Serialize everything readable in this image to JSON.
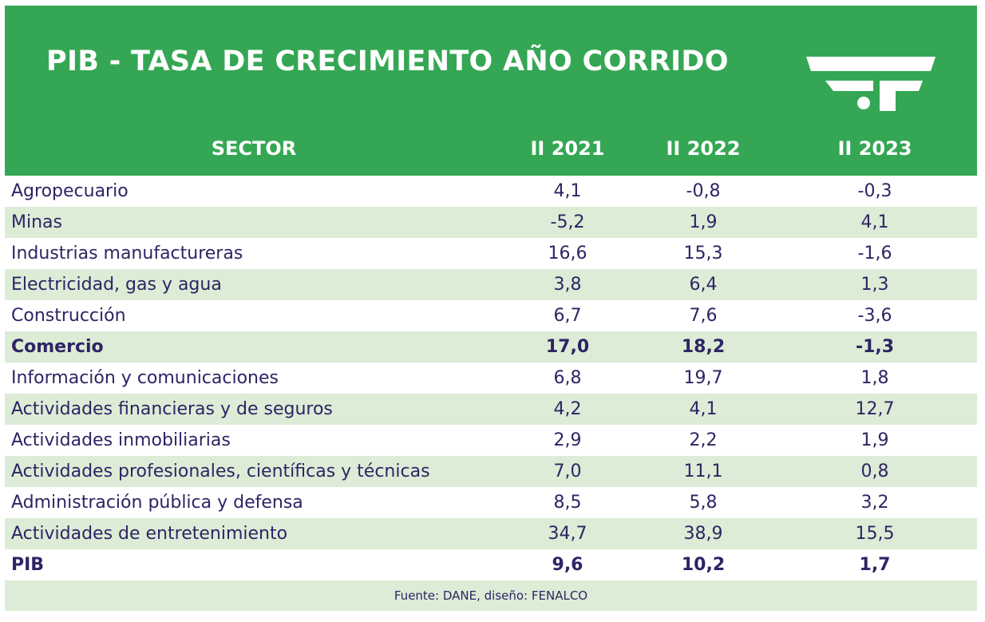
{
  "title": "PIB - TASA DE CRECIMIENTO AÑO CORRIDO",
  "logo": {
    "icon": "fenalco-logo-icon",
    "color": "#ffffff"
  },
  "colors": {
    "header_green": "#35a754",
    "row_alt": "#dcecd6",
    "text": "#2e2464"
  },
  "columns": {
    "sector": "SECTOR",
    "c1": "II 2021",
    "c2": "II 2022",
    "c3": "II 2023"
  },
  "source": "Fuente: DANE, diseño: FENALCO",
  "chart_data": {
    "type": "table",
    "title": "PIB - TASA DE CRECIMIENTO AÑO CORRIDO",
    "columns": [
      "SECTOR",
      "II 2021",
      "II 2022",
      "II 2023"
    ],
    "rows": [
      {
        "sector": "Agropecuario",
        "values": [
          "4,1",
          "-0,8",
          "-0,3"
        ],
        "bold": false
      },
      {
        "sector": "Minas",
        "values": [
          "-5,2",
          "1,9",
          "4,1"
        ],
        "bold": false
      },
      {
        "sector": "Industrias manufactureras",
        "values": [
          "16,6",
          "15,3",
          "-1,6"
        ],
        "bold": false
      },
      {
        "sector": "Electricidad, gas y agua",
        "values": [
          "3,8",
          "6,4",
          "1,3"
        ],
        "bold": false
      },
      {
        "sector": "Construcción",
        "values": [
          "6,7",
          "7,6",
          "-3,6"
        ],
        "bold": false
      },
      {
        "sector": "Comercio",
        "values": [
          "17,0",
          "18,2",
          "-1,3"
        ],
        "bold": true
      },
      {
        "sector": "Información y comunicaciones",
        "values": [
          "6,8",
          "19,7",
          "1,8"
        ],
        "bold": false
      },
      {
        "sector": "Actividades financieras y de seguros",
        "values": [
          "4,2",
          "4,1",
          "12,7"
        ],
        "bold": false
      },
      {
        "sector": "Actividades inmobiliarias",
        "values": [
          "2,9",
          "2,2",
          "1,9"
        ],
        "bold": false
      },
      {
        "sector": "Actividades profesionales, científicas y técnicas",
        "values": [
          "7,0",
          "11,1",
          "0,8"
        ],
        "bold": false
      },
      {
        "sector": "Administración pública y defensa",
        "values": [
          "8,5",
          "5,8",
          "3,2"
        ],
        "bold": false
      },
      {
        "sector": "Actividades de entretenimiento",
        "values": [
          "34,7",
          "38,9",
          "15,5"
        ],
        "bold": false
      },
      {
        "sector": "PIB",
        "values": [
          "9,6",
          "10,2",
          "1,7"
        ],
        "bold": true
      }
    ],
    "source": "Fuente: DANE, diseño: FENALCO"
  }
}
